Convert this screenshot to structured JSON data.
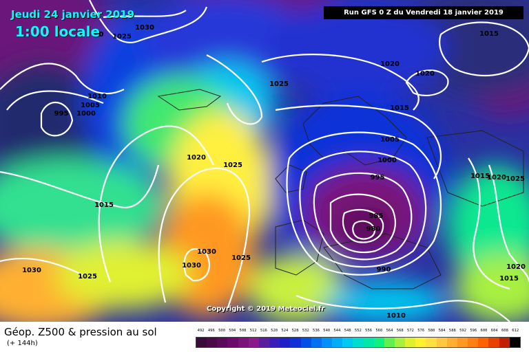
{
  "header": {
    "date": "Jeudi 24 janvier 2019",
    "time": "1:00 locale",
    "run": "Run GFS 0 Z du Vendredi 18 janvier 2019"
  },
  "copyright": "Copyright © 2019 Meteociel.fr",
  "legend": {
    "title": "Géop. Z500 & pression au sol",
    "subtitle": "(+ 144h)",
    "ticks": [
      "492",
      "496",
      "500",
      "504",
      "508",
      "512",
      "516",
      "520",
      "524",
      "528",
      "532",
      "536",
      "540",
      "544",
      "548",
      "552",
      "556",
      "560",
      "564",
      "568",
      "572",
      "576",
      "580",
      "584",
      "588",
      "592",
      "596",
      "600",
      "604",
      "608",
      "612"
    ],
    "colors": [
      "#3a0a3a",
      "#4a0a4a",
      "#5a0a5a",
      "#6a0a6a",
      "#7a127a",
      "#8a1a8a",
      "#5b1da0",
      "#3a20b8",
      "#2020c8",
      "#1030d8",
      "#0050e8",
      "#0070f0",
      "#0090f8",
      "#00aef8",
      "#00c8f0",
      "#00dcd0",
      "#00e8a8",
      "#10f080",
      "#60f050",
      "#a8f040",
      "#e0f030",
      "#fff030",
      "#ffe040",
      "#ffc840",
      "#ffb030",
      "#ff9820",
      "#ff8010",
      "#ff6000",
      "#e84000",
      "#c02000",
      "#000000"
    ]
  },
  "isobars": [
    {
      "value": "1030",
      "id": "lbl-1030-nw"
    },
    {
      "value": "1025",
      "id": "lbl-1025-nw"
    },
    {
      "value": "1010",
      "id": "lbl-1010"
    },
    {
      "value": "1005",
      "id": "lbl-1005-w"
    },
    {
      "value": "1000",
      "id": "lbl-1000-w"
    },
    {
      "value": "995",
      "id": "lbl-995-w"
    },
    {
      "value": "1025",
      "id": "lbl-1025-n"
    },
    {
      "value": "1020",
      "id": "lbl-1020-c"
    },
    {
      "value": "1025",
      "id": "lbl-1025-c"
    },
    {
      "value": "1015",
      "id": "lbl-1015-w"
    },
    {
      "value": "1030",
      "id": "lbl-1030-c1"
    },
    {
      "value": "1030",
      "id": "lbl-1030-c2"
    },
    {
      "value": "1025",
      "id": "lbl-1025-sc"
    },
    {
      "value": "1030",
      "id": "lbl-1030-sw"
    },
    {
      "value": "1025",
      "id": "lbl-1025-sw"
    },
    {
      "value": "1020",
      "id": "lbl-1020-ne"
    },
    {
      "value": "1020",
      "id": "lbl-1020-ne2"
    },
    {
      "value": "1015",
      "id": "lbl-1015-ne"
    },
    {
      "value": "1015",
      "id": "lbl-1015-c"
    },
    {
      "value": "1005",
      "id": "lbl-1005-e"
    },
    {
      "value": "1000",
      "id": "lbl-1000-e"
    },
    {
      "value": "995",
      "id": "lbl-995-e"
    },
    {
      "value": "985",
      "id": "lbl-985"
    },
    {
      "value": "980",
      "id": "lbl-980"
    },
    {
      "value": "990",
      "id": "lbl-990"
    },
    {
      "value": "1010",
      "id": "lbl-1010-s"
    },
    {
      "value": "1015",
      "id": "lbl-1015-e1"
    },
    {
      "value": "1020",
      "id": "lbl-1020-e1"
    },
    {
      "value": "1025",
      "id": "lbl-1025-e1"
    },
    {
      "value": "1020",
      "id": "lbl-1020-se"
    },
    {
      "value": "1015",
      "id": "lbl-1015-se"
    },
    {
      "value": "0",
      "id": "lbl-0-nw"
    }
  ]
}
